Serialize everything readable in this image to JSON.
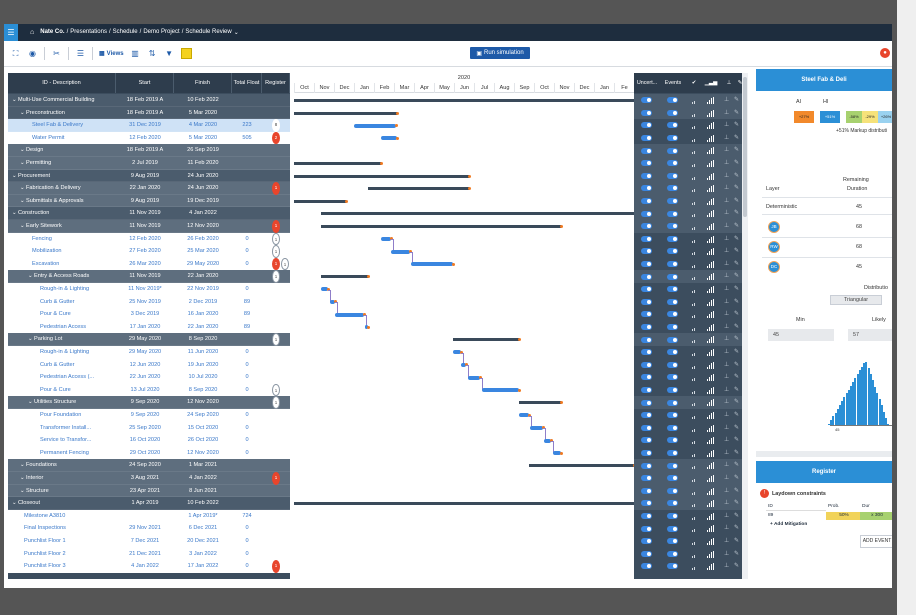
{
  "breadcrumb": {
    "company": "Nate Co.",
    "items": [
      "Presentations",
      "Schedule",
      "Demo Project",
      "Schedule Review"
    ],
    "separator": "/"
  },
  "toolbar": {
    "views_label": "Views",
    "run_simulation_label": "Run simulation"
  },
  "grid": {
    "columns": [
      "ID - Description",
      "Start",
      "Finish",
      "Total Float",
      "Register"
    ],
    "rows": [
      {
        "level": 0,
        "type": "sum",
        "desc": "Multi-Use Commercial Building",
        "start": "18 Feb 2019 A",
        "finish": "10 Feb 2022",
        "float": "",
        "badge": "",
        "badge_type": ""
      },
      {
        "level": 1,
        "type": "sum",
        "desc": "Preconstruction",
        "start": "18 Feb 2019 A",
        "finish": "5 Mar 2020",
        "float": "",
        "badge": "",
        "badge_type": ""
      },
      {
        "level": 2,
        "type": "sel",
        "desc": "Steel Fab & Delivery",
        "start": "31 Dec 2019",
        "finish": "4 Mar 2020",
        "float": "223",
        "badge": "8",
        "badge_type": "dark"
      },
      {
        "level": 2,
        "type": "task",
        "desc": "Water Permit",
        "start": "12 Feb 2020",
        "finish": "5 Mar 2020",
        "float": "505",
        "badge": "2",
        "badge_type": "red"
      },
      {
        "level": 1,
        "type": "sub",
        "desc": "Design",
        "start": "18 Feb 2019 A",
        "finish": "26 Sep 2019",
        "float": "",
        "badge": "",
        "badge_type": ""
      },
      {
        "level": 1,
        "type": "sub",
        "desc": "Permitting",
        "start": "2 Jul 2019",
        "finish": "11 Feb 2020",
        "float": "",
        "badge": "",
        "badge_type": ""
      },
      {
        "level": 0,
        "type": "sum",
        "desc": "Procurement",
        "start": "9 Aug 2019",
        "finish": "24 Jun 2020",
        "float": "",
        "badge": "",
        "badge_type": ""
      },
      {
        "level": 1,
        "type": "sub",
        "desc": "Fabrication & Delivery",
        "start": "22 Jan 2020",
        "finish": "24 Jun 2020",
        "float": "",
        "badge": "1",
        "badge_type": "red"
      },
      {
        "level": 1,
        "type": "sub",
        "desc": "Submittals & Approvals",
        "start": "9 Aug 2019",
        "finish": "19 Dec 2019",
        "float": "",
        "badge": "",
        "badge_type": ""
      },
      {
        "level": 0,
        "type": "sum",
        "desc": "Construction",
        "start": "11 Nov 2019",
        "finish": "4 Jan 2022",
        "float": "",
        "badge": "",
        "badge_type": ""
      },
      {
        "level": 1,
        "type": "sub",
        "desc": "Early Sitework",
        "start": "11 Nov 2019",
        "finish": "12 Nov 2020",
        "float": "",
        "badge": "1",
        "badge_type": "red"
      },
      {
        "level": 2,
        "type": "task",
        "desc": "Fencing",
        "start": "12 Feb 2020",
        "finish": "26 Feb 2020",
        "float": "0",
        "badge": "1",
        "badge_type": "gray"
      },
      {
        "level": 2,
        "type": "task",
        "desc": "Mobilization",
        "start": "27 Feb 2020",
        "finish": "25 Mar 2020",
        "float": "0",
        "badge": "1",
        "badge_type": "gray"
      },
      {
        "level": 2,
        "type": "task",
        "desc": "Excavation",
        "start": "26 Mar 2020",
        "finish": "29 May 2020",
        "float": "0",
        "badge": "1",
        "badge_type": "red2"
      },
      {
        "level": 2,
        "type": "sub",
        "desc": "Entry & Access Roads",
        "start": "11 Nov 2019",
        "finish": "22 Jan 2020",
        "float": "",
        "badge": "1",
        "badge_type": "gray"
      },
      {
        "level": 3,
        "type": "task",
        "desc": "Rough-in & Lighting",
        "start": "11 Nov 2019*",
        "finish": "22 Nov 2019",
        "float": "0",
        "badge": "",
        "badge_type": ""
      },
      {
        "level": 3,
        "type": "task",
        "desc": "Curb & Gutter",
        "start": "25 Nov 2019",
        "finish": "2 Dec 2019",
        "float": "89",
        "badge": "",
        "badge_type": ""
      },
      {
        "level": 3,
        "type": "task",
        "desc": "Pour & Cure",
        "start": "3 Dec 2019",
        "finish": "16 Jan 2020",
        "float": "89",
        "badge": "",
        "badge_type": ""
      },
      {
        "level": 3,
        "type": "task",
        "desc": "Pedestrian Access",
        "start": "17 Jan 2020",
        "finish": "22 Jan 2020",
        "float": "89",
        "badge": "",
        "badge_type": ""
      },
      {
        "level": 2,
        "type": "sub",
        "desc": "Parking Lot",
        "start": "29 May 2020",
        "finish": "8 Sep 2020",
        "float": "",
        "badge": "1",
        "badge_type": "gray"
      },
      {
        "level": 3,
        "type": "task",
        "desc": "Rough-in & Lighting",
        "start": "29 May 2020",
        "finish": "11 Jun 2020",
        "float": "0",
        "badge": "",
        "badge_type": ""
      },
      {
        "level": 3,
        "type": "task",
        "desc": "Curb & Gutter",
        "start": "12 Jun 2020",
        "finish": "19 Jun 2020",
        "float": "0",
        "badge": "",
        "badge_type": ""
      },
      {
        "level": 3,
        "type": "task",
        "desc": "Pedestrian Access (...",
        "start": "22 Jun 2020",
        "finish": "10 Jul 2020",
        "float": "0",
        "badge": "",
        "badge_type": ""
      },
      {
        "level": 3,
        "type": "task",
        "desc": "Pour & Cure",
        "start": "13 Jul 2020",
        "finish": "8 Sep 2020",
        "float": "0",
        "badge": "1",
        "badge_type": "gray"
      },
      {
        "level": 2,
        "type": "sub",
        "desc": "Utilities Structure",
        "start": "9 Sep 2020",
        "finish": "12 Nov 2020",
        "float": "",
        "badge": "1",
        "badge_type": "gray"
      },
      {
        "level": 3,
        "type": "task",
        "desc": "Pour Foundation",
        "start": "9 Sep 2020",
        "finish": "24 Sep 2020",
        "float": "0",
        "badge": "",
        "badge_type": ""
      },
      {
        "level": 3,
        "type": "task",
        "desc": "Transformer Install...",
        "start": "25 Sep 2020",
        "finish": "15 Oct 2020",
        "float": "0",
        "badge": "",
        "badge_type": ""
      },
      {
        "level": 3,
        "type": "task",
        "desc": "Service to Transfor...",
        "start": "16 Oct 2020",
        "finish": "26 Oct 2020",
        "float": "0",
        "badge": "",
        "badge_type": ""
      },
      {
        "level": 3,
        "type": "task",
        "desc": "Permanent Fencing",
        "start": "29 Oct 2020",
        "finish": "12 Nov 2020",
        "float": "0",
        "badge": "",
        "badge_type": ""
      },
      {
        "level": 1,
        "type": "sub",
        "desc": "Foundations",
        "start": "24 Sep 2020",
        "finish": "1 Mar 2021",
        "float": "",
        "badge": "",
        "badge_type": ""
      },
      {
        "level": 1,
        "type": "sub",
        "desc": "Interior",
        "start": "3 Aug 2021",
        "finish": "4 Jan 2022",
        "float": "",
        "badge": "1",
        "badge_type": "red"
      },
      {
        "level": 1,
        "type": "sub",
        "desc": "Structure",
        "start": "23 Apr 2021",
        "finish": "8 Jun 2021",
        "float": "",
        "badge": "",
        "badge_type": ""
      },
      {
        "level": 0,
        "type": "sum",
        "desc": "Closeout",
        "start": "1 Apr 2019",
        "finish": "10 Feb 2022",
        "float": "",
        "badge": "",
        "badge_type": ""
      },
      {
        "level": 1,
        "type": "task",
        "desc": "Milestone A3810",
        "start": "",
        "finish": "1 Apr 2019*",
        "float": "724",
        "badge": "",
        "badge_type": ""
      },
      {
        "level": 1,
        "type": "task",
        "desc": "Final Inspections",
        "start": "29 Nov 2021",
        "finish": "6 Dec 2021",
        "float": "0",
        "badge": "",
        "badge_type": ""
      },
      {
        "level": 1,
        "type": "task",
        "desc": "Punchlist Floor 1",
        "start": "7 Dec 2021",
        "finish": "20 Dec 2021",
        "float": "0",
        "badge": "",
        "badge_type": ""
      },
      {
        "level": 1,
        "type": "task",
        "desc": "Punchlist Floor 2",
        "start": "21 Dec 2021",
        "finish": "3 Jan 2022",
        "float": "0",
        "badge": "",
        "badge_type": ""
      },
      {
        "level": 1,
        "type": "task",
        "desc": "Punchlist Floor 3",
        "start": "4 Jan 2022",
        "finish": "17 Jan 2022",
        "float": "0",
        "badge": "1",
        "badge_type": "red"
      }
    ]
  },
  "gantt": {
    "year_label": "2020",
    "months": [
      "Oct",
      "Nov",
      "Dec",
      "Jan",
      "Feb",
      "Mar",
      "Apr",
      "May",
      "Jun",
      "Jul",
      "Aug",
      "Sep",
      "Oct",
      "Nov",
      "Dec",
      "Jan",
      "Fe"
    ]
  },
  "right_columns": {
    "headers": [
      "Uncert...",
      "Events"
    ]
  },
  "panel": {
    "title": "Steel Fab & Deli",
    "legend_ai": "AI",
    "legend_hi": "HI",
    "swatches": [
      "+27%",
      "+51%",
      "-58%",
      "-29%",
      "+26%"
    ],
    "markup_text": "+51% Markup distributi",
    "layer_label": "Layer",
    "remaining_label": "Remaining",
    "duration_label": "Duration",
    "deterministic_label": "Deterministic",
    "deterministic_value": "45",
    "assessors": [
      {
        "initials": "JB",
        "value": "68"
      },
      {
        "initials": "RW",
        "value": "68"
      },
      {
        "initials": "DC",
        "value": "45"
      }
    ],
    "distribution_label": "Distributio",
    "triangular_label": "Triangular",
    "min_label": "Min",
    "likely_label": "Likely",
    "min_value": "45",
    "likely_value": "57",
    "hist_axis_label": "45",
    "register_title": "Register",
    "laydown_title": "Laydown constraints",
    "reg_cols": [
      "ID",
      "Prob.",
      "Dur"
    ],
    "reg_row": {
      "id": "89",
      "prob": "50%",
      "dur": "x 300"
    },
    "add_mitigation": "+ Add Mitigation",
    "add_event": "ADD EVENT"
  },
  "colors": {
    "accent": "#2b8fd6",
    "titlebar": "#1e2d3e",
    "summary_row": "#4b5c6d",
    "task_bar": "#3a86e0",
    "milestone_dot": "#f07a22",
    "alert": "#e8452c"
  }
}
